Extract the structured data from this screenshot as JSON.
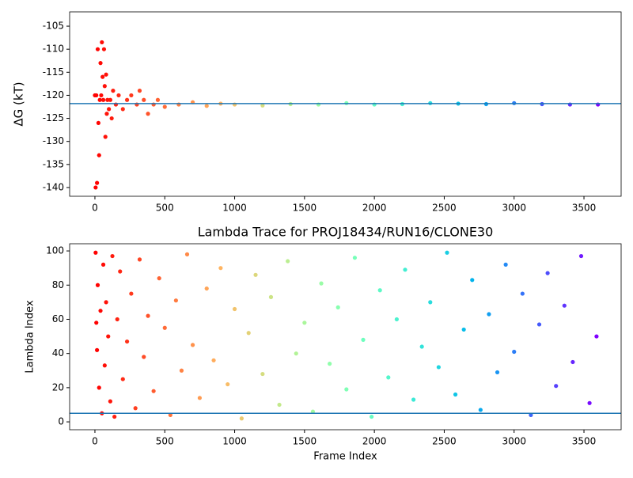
{
  "chart_data": [
    {
      "type": "scatter",
      "ylabel": "ΔG (kT)",
      "colormap": "rainbow_r",
      "x": [
        0,
        5,
        10,
        15,
        20,
        25,
        30,
        35,
        40,
        45,
        50,
        55,
        60,
        65,
        70,
        75,
        80,
        85,
        90,
        100,
        110,
        120,
        130,
        150,
        170,
        200,
        230,
        260,
        300,
        320,
        350,
        380,
        420,
        450,
        500,
        600,
        700,
        800,
        900,
        1000,
        1200,
        1400,
        1600,
        1800,
        2000,
        2200,
        2400,
        2600,
        2800,
        3000,
        3200,
        3400,
        3600
      ],
      "values": [
        -120,
        -140,
        -120,
        -139,
        -110,
        -126,
        -133,
        -121,
        -113,
        -120,
        -108.5,
        -116,
        -121,
        -110,
        -118,
        -129,
        -115.5,
        -124,
        -121,
        -123,
        -121,
        -125,
        -119,
        -122,
        -120,
        -123,
        -121,
        -120,
        -122,
        -119,
        -121,
        -124,
        -122,
        -121,
        -122.5,
        -122,
        -121.5,
        -122.3,
        -121.8,
        -122,
        -122.2,
        -121.9,
        -122,
        -121.7,
        -122,
        -121.9,
        -121.7,
        -121.8,
        -121.9,
        -121.7,
        -121.9,
        -122,
        -122
      ],
      "xlim": [
        -181,
        3766
      ],
      "ylim": [
        -141.9,
        -101.9
      ],
      "xticks": [
        0,
        500,
        1000,
        1500,
        2000,
        2500,
        3000,
        3500
      ],
      "yticks": [
        -140,
        -135,
        -130,
        -125,
        -120,
        -115,
        -110,
        -105
      ],
      "hline": -121.8,
      "hline_color": "#1f77b4"
    },
    {
      "type": "scatter",
      "title": "Lambda Trace for PROJ18434/RUN16/CLONE30",
      "xlabel": "Frame Index",
      "ylabel": "Lambda Index",
      "colormap": "rainbow_r",
      "x": [
        5,
        10,
        15,
        20,
        30,
        40,
        50,
        60,
        70,
        80,
        95,
        110,
        125,
        140,
        160,
        180,
        200,
        230,
        260,
        290,
        320,
        350,
        380,
        420,
        460,
        500,
        540,
        580,
        620,
        660,
        700,
        750,
        800,
        850,
        900,
        950,
        1000,
        1050,
        1100,
        1150,
        1200,
        1260,
        1320,
        1380,
        1440,
        1500,
        1560,
        1620,
        1680,
        1740,
        1800,
        1860,
        1920,
        1980,
        2040,
        2100,
        2160,
        2220,
        2280,
        2340,
        2400,
        2460,
        2520,
        2580,
        2640,
        2700,
        2760,
        2820,
        2880,
        2940,
        3000,
        3060,
        3120,
        3180,
        3240,
        3300,
        3360,
        3420,
        3480,
        3540,
        3590
      ],
      "values": [
        99,
        58,
        42,
        80,
        20,
        65,
        5,
        92,
        33,
        70,
        50,
        12,
        97,
        3,
        60,
        88,
        25,
        47,
        75,
        8,
        95,
        38,
        62,
        18,
        84,
        55,
        4,
        71,
        30,
        98,
        45,
        14,
        78,
        36,
        90,
        22,
        66,
        2,
        52,
        86,
        28,
        73,
        10,
        94,
        40,
        58,
        6,
        81,
        34,
        67,
        19,
        96,
        48,
        3,
        77,
        26,
        60,
        89,
        13,
        44,
        70,
        32,
        99,
        16,
        54,
        83,
        7,
        63,
        29,
        92,
        41,
        75,
        4,
        57,
        87,
        21,
        68,
        35,
        97,
        11,
        50
      ],
      "xlim": [
        -181,
        3766
      ],
      "ylim": [
        -4.6,
        104.2
      ],
      "xticks": [
        0,
        500,
        1000,
        1500,
        2000,
        2500,
        3000,
        3500
      ],
      "yticks": [
        0,
        20,
        40,
        60,
        80,
        100
      ],
      "hline": 5,
      "hline_color": "#1f77b4"
    }
  ]
}
